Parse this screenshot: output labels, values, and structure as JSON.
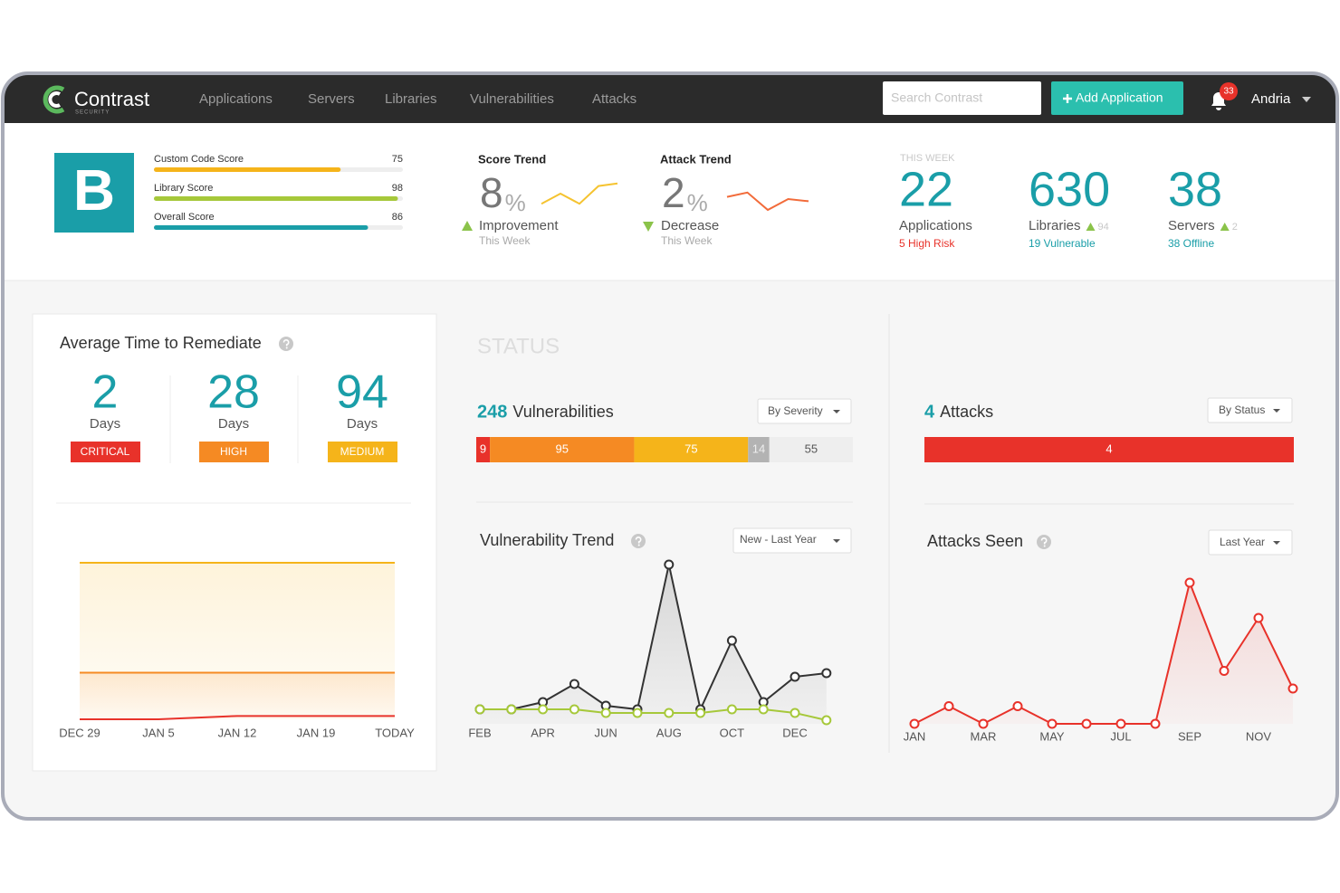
{
  "nav": {
    "brand": "Contrast",
    "brand_sub": "SECURITY",
    "links": [
      "Applications",
      "Servers",
      "Libraries",
      "Vulnerabilities",
      "Attacks"
    ],
    "search_placeholder": "Search Contrast",
    "add_button": "Add Application",
    "notifications": 33,
    "user": "Andria"
  },
  "scores": {
    "grade": "B",
    "xlim": [
      0,
      100
    ],
    "items": [
      {
        "label": "Custom Code Score",
        "value": 75,
        "color": "#f5b41a"
      },
      {
        "label": "Library Score",
        "value": 98,
        "color": "#a6c83a"
      },
      {
        "label": "Overall Score",
        "value": 86,
        "color": "#1a9ea8"
      }
    ]
  },
  "trends": [
    {
      "value": 8,
      "unit": "%",
      "direction": "Improvement",
      "period": "This Week"
    },
    {
      "value": 2,
      "unit": "%",
      "direction": "Decrease",
      "period": "This Week"
    }
  ],
  "this_week": {
    "label": "THIS WEEK",
    "stats": [
      {
        "value": 22,
        "label": "Applications",
        "note": "5 High Risk"
      },
      {
        "value": 630,
        "label": "Libraries",
        "delta": 94,
        "note": "19 Vulnerable"
      },
      {
        "value": 38,
        "label": "Servers",
        "delta": 2,
        "note": "38 Offline"
      }
    ]
  },
  "remediate": {
    "title": "Average Time to Remediate",
    "unit": "Days",
    "items": [
      {
        "value": 2,
        "severity": "CRITICAL",
        "color": "#e8322a"
      },
      {
        "value": 28,
        "severity": "HIGH",
        "color": "#f58a23"
      },
      {
        "value": 94,
        "severity": "MEDIUM",
        "color": "#f5b41a"
      }
    ]
  },
  "status": {
    "title": "STATUS",
    "vulnerabilities": {
      "count": 248,
      "label": "Vulnerabilities",
      "dropdown": "By Severity",
      "segments": [
        {
          "value": 9,
          "color": "#e8322a",
          "text_color": "#ffffff"
        },
        {
          "value": 95,
          "color": "#f58a23",
          "text_color": "#ffffff"
        },
        {
          "value": 75,
          "color": "#f5b41a",
          "text_color": "#ffffff"
        },
        {
          "value": 14,
          "color": "#b3b3b3",
          "text_color": "#eeeeee"
        },
        {
          "value": 55,
          "color": "#eeeeee",
          "text_color": "#555555"
        }
      ]
    },
    "attacks": {
      "count": 4,
      "label": "Attacks",
      "dropdown": "By Status",
      "segments": [
        {
          "value": 4,
          "color": "#e8322a",
          "text_color": "#ffffff"
        }
      ]
    }
  },
  "chart_data": [
    {
      "type": "line",
      "title": "Score Trend",
      "ylim": [
        0,
        10
      ],
      "color": "#f5c330",
      "values": [
        1,
        5,
        1,
        8,
        9
      ]
    },
    {
      "type": "line",
      "title": "Attack Trend",
      "ylim": [
        0,
        10
      ],
      "color": "#f26b3a",
      "values": [
        6,
        8,
        0,
        5,
        4
      ]
    },
    {
      "type": "line",
      "categories": [
        "DEC 29",
        "JAN 5",
        "JAN 12",
        "JAN 19",
        "TODAY"
      ],
      "ylim": [
        0,
        100
      ],
      "series": [
        {
          "color": "#f5b41a",
          "fill_area": true,
          "values": [
            94,
            94,
            94,
            94,
            94
          ]
        },
        {
          "color": "#f58a23",
          "fill_area": true,
          "values": [
            28,
            28,
            28,
            28,
            28
          ]
        },
        {
          "color": "#e8322a",
          "fill_area": false,
          "values": [
            0,
            0,
            2,
            2,
            2
          ]
        }
      ]
    },
    {
      "type": "line",
      "title": "Vulnerability Trend",
      "dropdown": "New - Last Year",
      "categories": [
        "FEB",
        null,
        "APR",
        null,
        "JUN",
        null,
        "AUG",
        null,
        "OCT",
        null,
        "DEC",
        null
      ],
      "ylim": [
        0,
        45
      ],
      "series": [
        {
          "color": "#333333",
          "fill_area": true,
          "values": [
            4,
            4,
            6,
            11,
            5,
            4,
            44,
            4,
            23,
            6,
            13,
            14
          ]
        },
        {
          "color": "#a6c83a",
          "fill_area": false,
          "values": [
            4,
            4,
            4,
            4,
            3,
            3,
            3,
            3,
            4,
            4,
            3,
            1
          ]
        }
      ]
    },
    {
      "type": "line",
      "title": "Attacks Seen",
      "dropdown": "Last Year",
      "categories": [
        "JAN",
        null,
        "MAR",
        null,
        "MAY",
        null,
        "JUL",
        null,
        "SEP",
        null,
        "NOV",
        null
      ],
      "ylim": [
        0,
        8
      ],
      "series": [
        {
          "color": "#e8322a",
          "fill_area": true,
          "values": [
            0,
            1,
            0,
            1,
            0,
            0,
            0,
            0,
            8,
            3,
            6,
            2
          ]
        }
      ]
    }
  ]
}
